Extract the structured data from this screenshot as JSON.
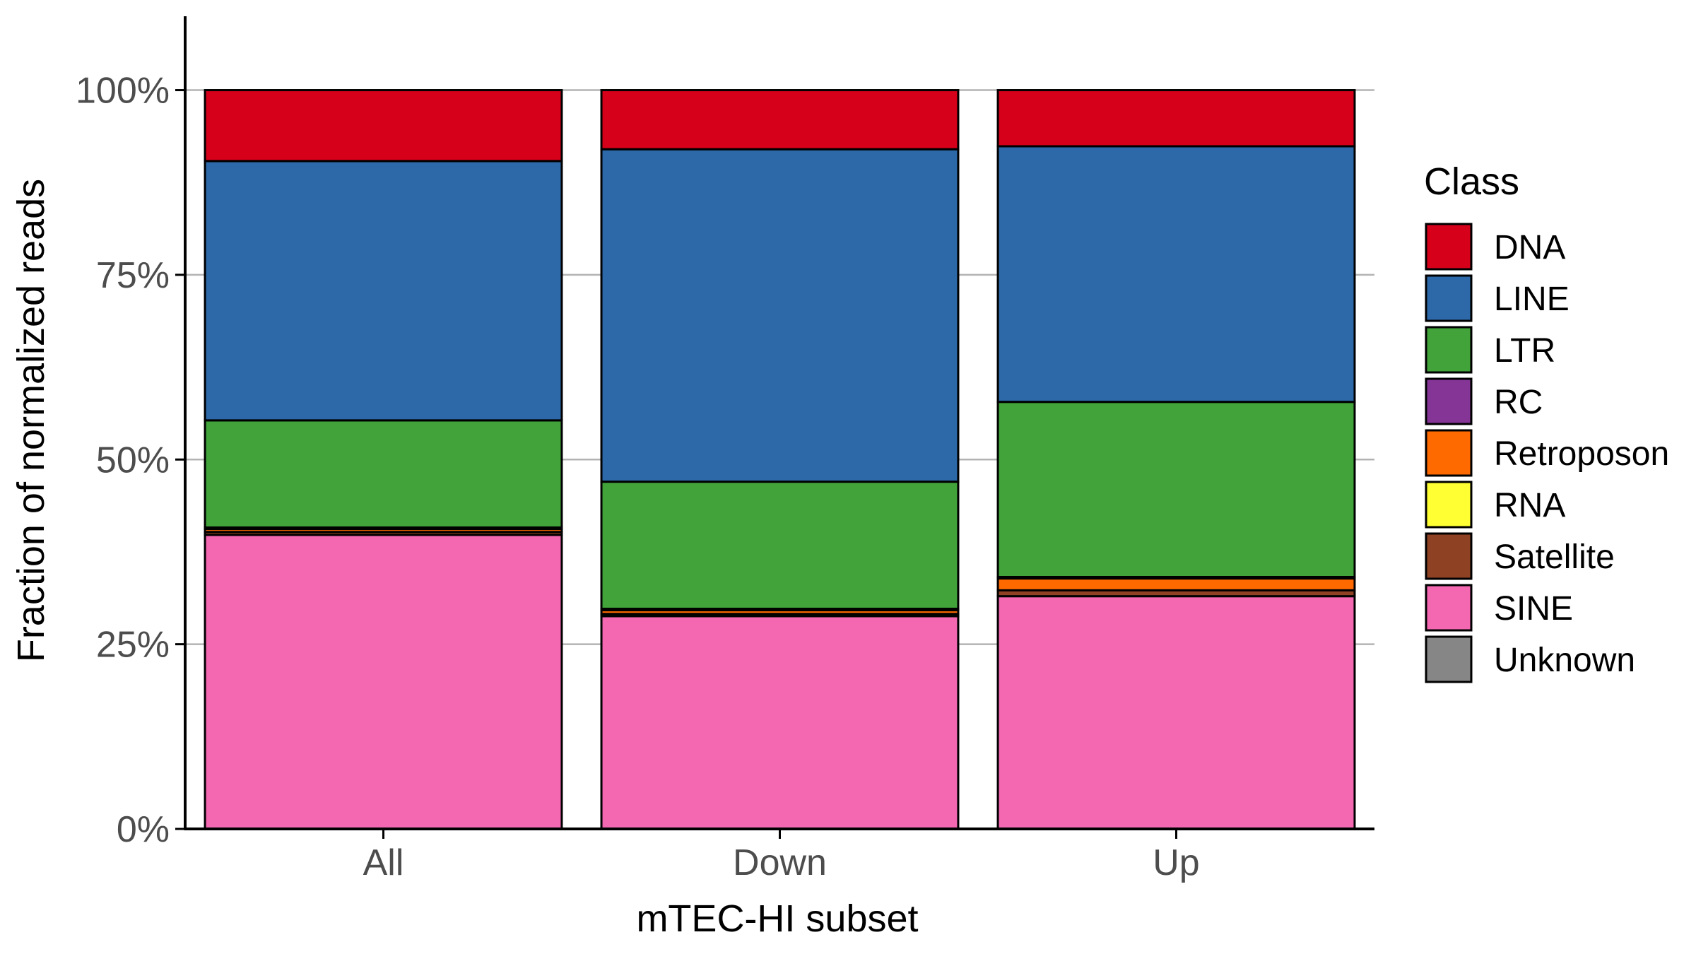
{
  "chart_data": {
    "type": "bar",
    "stacked": true,
    "categories": [
      "All",
      "Down",
      "Up"
    ],
    "xlabel": "mTEC-HI subset",
    "ylabel": "Fraction of normalized reads",
    "ylim": [
      0,
      1.1
    ],
    "yticks": [
      0,
      0.25,
      0.5,
      0.75,
      1.0
    ],
    "ytick_labels": [
      "0%",
      "25%",
      "50%",
      "75%",
      "100%"
    ],
    "grid": "horizontal-major",
    "legend": {
      "title": "Class",
      "position": "right"
    },
    "series": [
      {
        "name": "SINE",
        "color": "#F468B2",
        "values": [
          0.398,
          0.288,
          0.315
        ]
      },
      {
        "name": "Satellite",
        "color": "#8E4223",
        "values": [
          0.004,
          0.003,
          0.008
        ]
      },
      {
        "name": "RNA",
        "color": "#FFFF33",
        "values": [
          0.0,
          0.0,
          0.0
        ]
      },
      {
        "name": "Retroposon",
        "color": "#FF6A00",
        "values": [
          0.004,
          0.005,
          0.016
        ]
      },
      {
        "name": "RC",
        "color": "#843595",
        "values": [
          0.002,
          0.002,
          0.002
        ]
      },
      {
        "name": "LTR",
        "color": "#41A33A",
        "values": [
          0.145,
          0.172,
          0.237
        ]
      },
      {
        "name": "LINE",
        "color": "#2D69A8",
        "values": [
          0.351,
          0.45,
          0.346
        ]
      },
      {
        "name": "DNA",
        "color": "#D7001B",
        "values": [
          0.096,
          0.08,
          0.076
        ]
      },
      {
        "name": "Unknown",
        "color": "#868686",
        "values": [
          0.0,
          0.0,
          0.0
        ]
      }
    ],
    "legend_order": [
      "DNA",
      "LINE",
      "LTR",
      "RC",
      "Retroposon",
      "RNA",
      "Satellite",
      "SINE",
      "Unknown"
    ]
  }
}
